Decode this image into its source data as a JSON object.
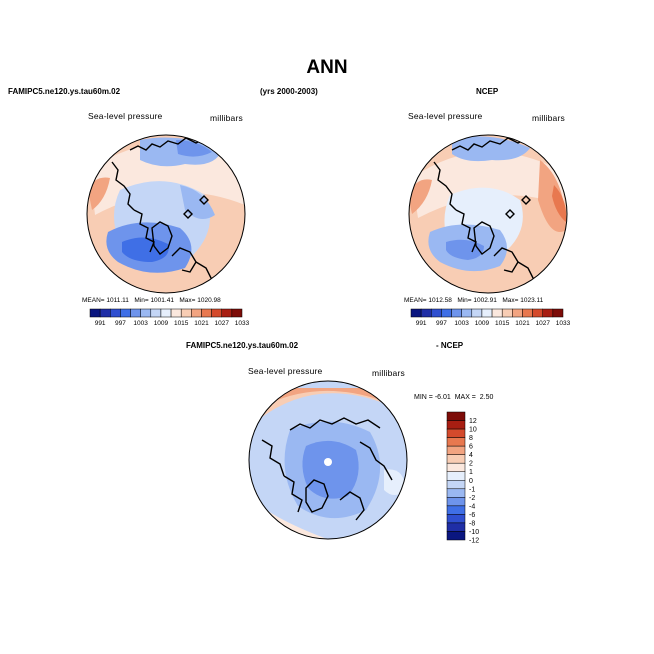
{
  "page": {
    "title": "ANN",
    "top_left_header": "FAMIPC5.ne120.ys.tau60m.02",
    "top_center_header": "(yrs 2000-2003)",
    "top_right_header": "NCEP",
    "bottom_header_left": "FAMIPC5.ne120.ys.tau60m.02",
    "bottom_header_right": "- NCEP"
  },
  "colors": {
    "scale": [
      "#0a1680",
      "#1f2ea6",
      "#2f4fd0",
      "#3f6fe6",
      "#6e94ec",
      "#9ab8f2",
      "#c4d6f6",
      "#e6effc",
      "#fbe8de",
      "#f8cdb4",
      "#f2a481",
      "#e8784f",
      "#d44a2c",
      "#a81e12",
      "#7d0c08"
    ],
    "land": "#000000"
  },
  "chart_data": [
    {
      "type": "heatmap",
      "projection": "north-polar-stereographic",
      "panel": "model",
      "field_label": "Sea-level pressure",
      "units_label": "millibars",
      "mean_label": "MEAN=",
      "mean": "1011.11",
      "min_label": "Min=",
      "min": "1001.41",
      "max_label": "Max=",
      "max": "1020.98",
      "colorbar_levels": [
        "991",
        "997",
        "1003",
        "1009",
        "1015",
        "1021",
        "1027",
        "1033"
      ]
    },
    {
      "type": "heatmap",
      "projection": "north-polar-stereographic",
      "panel": "obs",
      "field_label": "Sea-level pressure",
      "units_label": "millibars",
      "mean_label": "MEAN=",
      "mean": "1012.58",
      "min_label": "Min=",
      "min": "1002.91",
      "max_label": "Max=",
      "max": "1023.11",
      "colorbar_levels": [
        "991",
        "997",
        "1003",
        "1009",
        "1015",
        "1021",
        "1027",
        "1033"
      ]
    },
    {
      "type": "heatmap",
      "projection": "north-polar-stereographic",
      "panel": "difference",
      "field_label": "Sea-level pressure",
      "units_label": "millibars",
      "min_label": "MIN =",
      "min": "-6.01",
      "max_label": "MAX =",
      "max": "2.50",
      "colorbar_levels": [
        "12",
        "10",
        "8",
        "6",
        "4",
        "2",
        "1",
        "0",
        "-1",
        "-2",
        "-4",
        "-6",
        "-8",
        "-10",
        "-12"
      ]
    }
  ]
}
